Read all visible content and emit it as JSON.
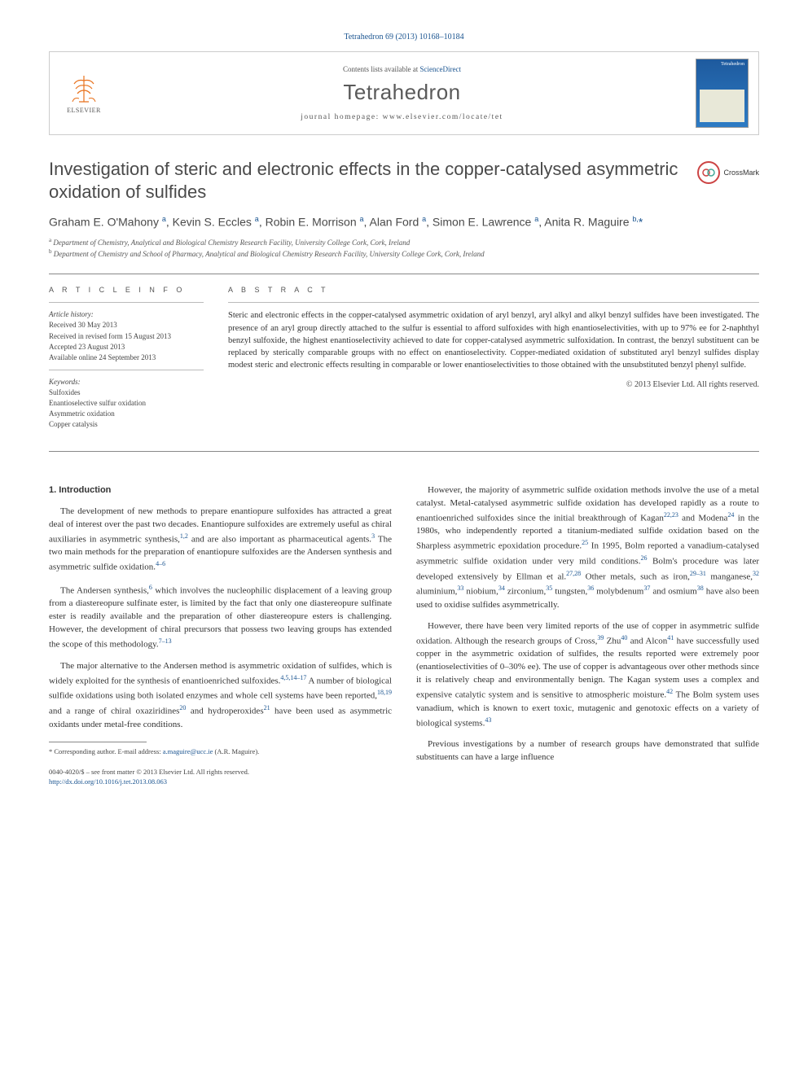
{
  "citation": "Tetrahedron 69 (2013) 10168–10184",
  "header": {
    "publisher_name": "ELSEVIER",
    "contents_prefix": "Contents lists available at ",
    "contents_link": "ScienceDirect",
    "journal": "Tetrahedron",
    "homepage_prefix": "journal homepage: ",
    "homepage_url": "www.elsevier.com/locate/tet",
    "cover_label": "Tetrahedron"
  },
  "crossmark_label": "CrossMark",
  "title": "Investigation of steric and electronic effects in the copper-catalysed asymmetric oxidation of sulfides",
  "authors_html": "Graham E. O'Mahony <sup>a</sup>, Kevin S. Eccles <sup>a</sup>, Robin E. Morrison <sup>a</sup>, Alan Ford <sup>a</sup>, Simon E. Lawrence <sup>a</sup>, Anita R. Maguire <sup>b,</sup><span class='corr'>*</span>",
  "affiliations": [
    {
      "sup": "a",
      "text": "Department of Chemistry, Analytical and Biological Chemistry Research Facility, University College Cork, Cork, Ireland"
    },
    {
      "sup": "b",
      "text": "Department of Chemistry and School of Pharmacy, Analytical and Biological Chemistry Research Facility, University College Cork, Cork, Ireland"
    }
  ],
  "info": {
    "label": "A R T I C L E   I N F O",
    "history_label": "Article history:",
    "history": [
      "Received 30 May 2013",
      "Received in revised form 15 August 2013",
      "Accepted 23 August 2013",
      "Available online 24 September 2013"
    ],
    "keywords_label": "Keywords:",
    "keywords": [
      "Sulfoxides",
      "Enantioselective sulfur oxidation",
      "Asymmetric oxidation",
      "Copper catalysis"
    ]
  },
  "abstract": {
    "label": "A B S T R A C T",
    "text": "Steric and electronic effects in the copper-catalysed asymmetric oxidation of aryl benzyl, aryl alkyl and alkyl benzyl sulfides have been investigated. The presence of an aryl group directly attached to the sulfur is essential to afford sulfoxides with high enantioselectivities, with up to 97% ee for 2-naphthyl benzyl sulfoxide, the highest enantioselectivity achieved to date for copper-catalysed asymmetric sulfoxidation. In contrast, the benzyl substituent can be replaced by sterically comparable groups with no effect on enantioselectivity. Copper-mediated oxidation of substituted aryl benzyl sulfides display modest steric and electronic effects resulting in comparable or lower enantioselectivities to those obtained with the unsubstituted benzyl phenyl sulfide.",
    "copyright": "© 2013 Elsevier Ltd. All rights reserved."
  },
  "body": {
    "heading": "1. Introduction",
    "left": [
      {
        "text": "The development of new methods to prepare enantiopure sulfoxides has attracted a great deal of interest over the past two decades. Enantiopure sulfoxides are extremely useful as chiral auxiliaries in asymmetric synthesis,",
        "ref": "1,2",
        "cont": " and are also important as pharmaceutical agents.",
        "ref2": "3",
        "cont2": " The two main methods for the preparation of enantiopure sulfoxides are the Andersen synthesis and asymmetric sulfide oxidation.",
        "ref3": "4–6"
      },
      {
        "text": "The Andersen synthesis,",
        "ref": "6",
        "cont": " which involves the nucleophilic displacement of a leaving group from a diastereopure sulfinate ester, is limited by the fact that only one diastereopure sulfinate ester is readily available and the preparation of other diastereopure esters is challenging. However, the development of chiral precursors that possess two leaving groups has extended the scope of this methodology.",
        "ref2": "7–13"
      },
      {
        "text": "The major alternative to the Andersen method is asymmetric oxidation of sulfides, which is widely exploited for the synthesis of enantioenriched sulfoxides.",
        "ref": "4,5,14–17",
        "cont": " A number of biological sulfide oxidations using both isolated enzymes and whole cell systems have been reported,",
        "ref2": "18,19",
        "cont2": " and a range of chiral oxaziridines",
        "ref3": "20",
        "cont3": " and hydroperoxides",
        "ref4": "21",
        "cont4": " have been used as asymmetric oxidants under metal-free conditions."
      }
    ],
    "right": [
      {
        "text": "However, the majority of asymmetric sulfide oxidation methods involve the use of a metal catalyst. Metal-catalysed asymmetric sulfide oxidation has developed rapidly as a route to enantioenriched sulfoxides since the initial breakthrough of Kagan",
        "ref": "22,23",
        "cont": " and Modena",
        "ref2": "24",
        "cont2": " in the 1980s, who independently reported a titanium-mediated sulfide oxidation based on the Sharpless asymmetric epoxidation procedure.",
        "ref3": "25",
        "cont3": " In 1995, Bolm reported a vanadium-catalysed asymmetric sulfide oxidation under very mild conditions.",
        "ref4": "26",
        "cont4": " Bolm's procedure was later developed extensively by Ellman et al.",
        "ref5": "27,28",
        "cont5": " Other metals, such as iron,",
        "ref6": "29–31",
        "cont6": " manganese,",
        "ref7": "32",
        "cont7": " aluminium,",
        "ref8": "33",
        "cont8": " niobium,",
        "ref9": "34",
        "cont9": " zirconium,",
        "ref10": "35",
        "cont10": " tungsten,",
        "ref11": "36",
        "cont11": " molybdenum",
        "ref12": "37",
        "cont12": " and osmium",
        "ref13": "38",
        "cont13": " have also been used to oxidise sulfides asymmetrically."
      },
      {
        "text": "However, there have been very limited reports of the use of copper in asymmetric sulfide oxidation. Although the research groups of Cross,",
        "ref": "39",
        "cont": " Zhu",
        "ref2": "40",
        "cont2": " and Alcon",
        "ref3": "41",
        "cont3": " have successfully used copper in the asymmetric oxidation of sulfides, the results reported were extremely poor (enantioselectivities of 0–30% ee). The use of copper is advantageous over other methods since it is relatively cheap and environmentally benign. The Kagan system uses a complex and expensive catalytic system and is sensitive to atmospheric moisture.",
        "ref4": "42",
        "cont4": " The Bolm system uses vanadium, which is known to exert toxic, mutagenic and genotoxic effects on a variety of biological systems.",
        "ref5": "43"
      },
      {
        "text": "Previous investigations by a number of research groups have demonstrated that sulfide substituents can have a large influence"
      }
    ]
  },
  "footnote": {
    "label": "* Corresponding author. E-mail address: ",
    "email": "a.maguire@ucc.ie",
    "tail": " (A.R. Maguire)."
  },
  "footer": {
    "line1": "0040-4020/$ – see front matter © 2013 Elsevier Ltd. All rights reserved.",
    "doi": "http://dx.doi.org/10.1016/j.tet.2013.08.063"
  },
  "colors": {
    "link": "#1a5490",
    "orange": "#e8711c"
  }
}
